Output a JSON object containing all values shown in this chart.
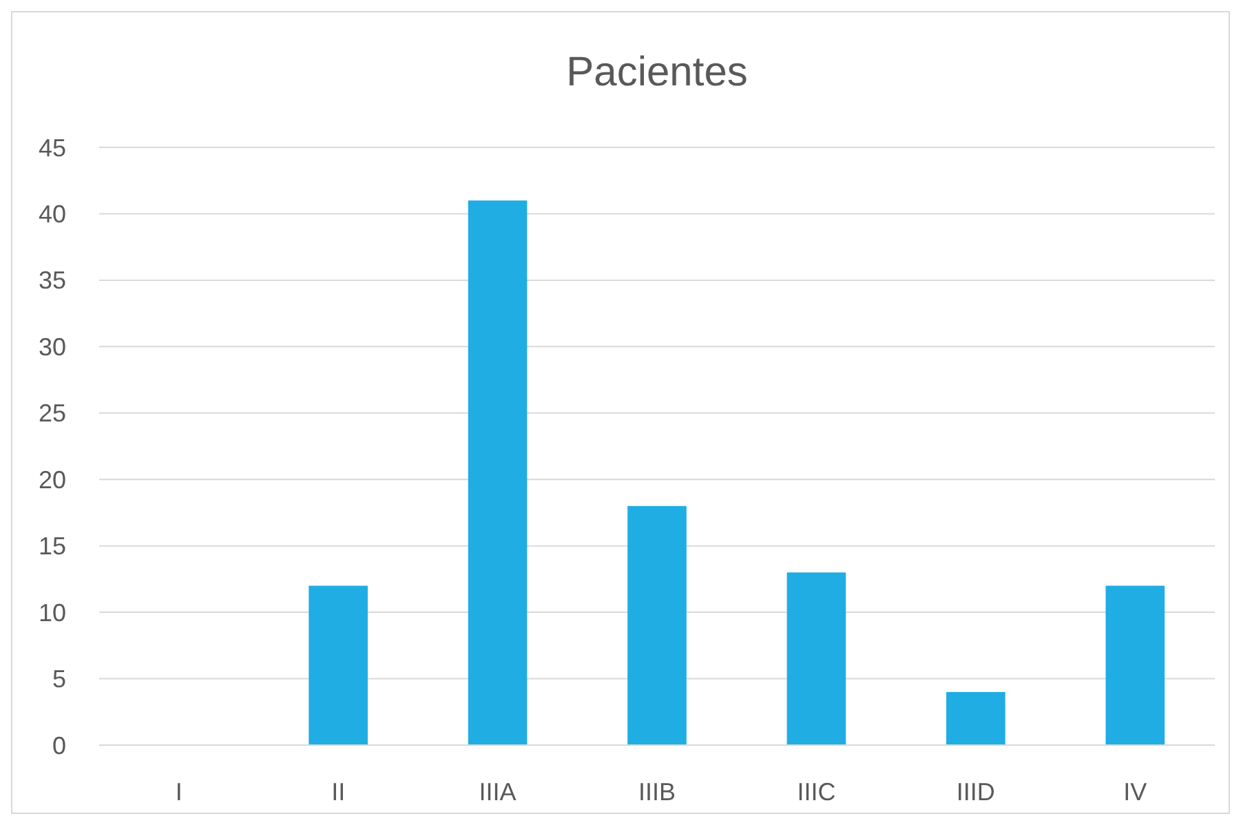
{
  "chart_data": {
    "type": "bar",
    "title": "Pacientes",
    "categories": [
      "I",
      "II",
      "IIIA",
      "IIIB",
      "IIIC",
      "IIID",
      "IV"
    ],
    "values": [
      0,
      12,
      41,
      18,
      13,
      4,
      12
    ],
    "color": "#1fade4",
    "ylim": [
      0,
      45
    ],
    "yticks": [
      0,
      5,
      10,
      15,
      20,
      25,
      30,
      35,
      40,
      45
    ],
    "grid": "y"
  }
}
